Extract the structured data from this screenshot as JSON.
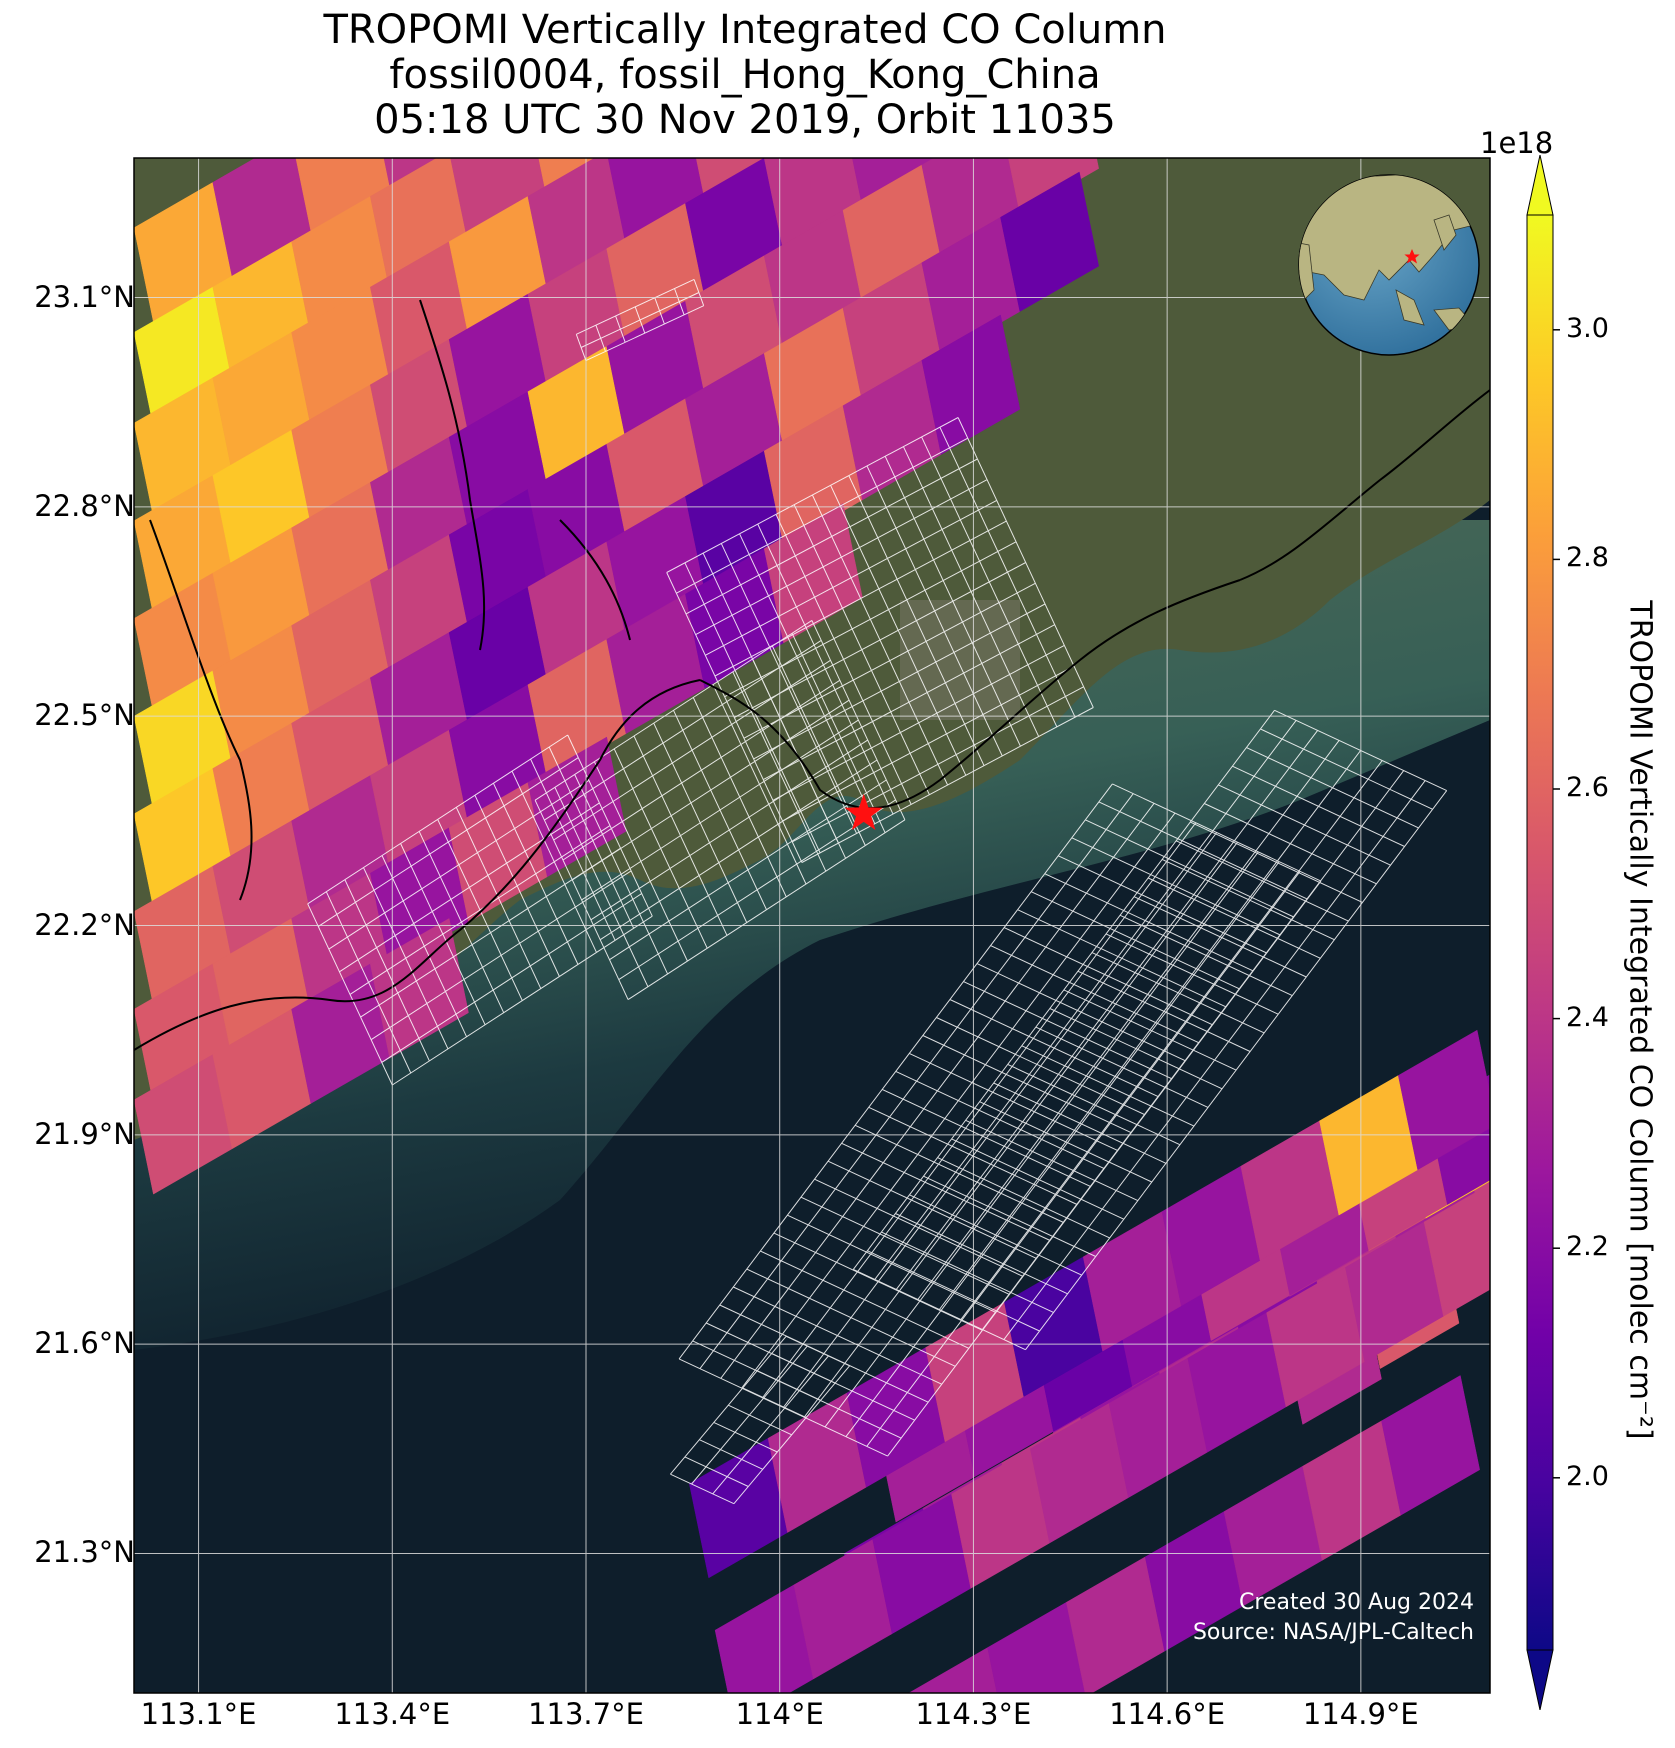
{
  "title": {
    "line1": "TROPOMI Vertically Integrated CO Column",
    "line2": "fossil0004, fossil_Hong_Kong_China",
    "line3": "05:18 UTC 30 Nov 2019, Orbit 11035"
  },
  "axes": {
    "lat_ticks": [
      "23.1°N",
      "22.8°N",
      "22.5°N",
      "22.2°N",
      "21.9°N",
      "21.6°N",
      "21.3°N"
    ],
    "lon_ticks": [
      "113.1°E",
      "113.4°E",
      "113.7°E",
      "114°E",
      "114.3°E",
      "114.6°E",
      "114.9°E"
    ]
  },
  "colorbar": {
    "label": "TROPOMI Vertically Integrated CO Column [molec cm⁻²]",
    "exponent": "1e18",
    "ticks": [
      "3.0",
      "2.8",
      "2.6",
      "2.4",
      "2.2",
      "2.0"
    ],
    "colormap": "plasma",
    "extend": "both"
  },
  "credits": {
    "created": "Created 30 Aug 2024",
    "source": "Source: NASA/JPL-Caltech"
  },
  "colors": {
    "ocean": "#0e1e2b",
    "grid": "#dddddd",
    "target_star": "#ff1010"
  },
  "chart_data": {
    "type": "heatmap",
    "variable": "Vertically integrated CO column",
    "units": "molec cm^-2 (×1e18)",
    "lon_range": [
      113.0,
      115.1
    ],
    "lat_range": [
      21.1,
      23.3
    ],
    "color_range": [
      1.85,
      3.1
    ],
    "target": {
      "lon": 114.13,
      "lat": 22.36
    },
    "scan_rows": [
      {
        "start": [
          113.0,
          23.2
        ],
        "values": [
          2.85,
          2.35,
          2.7,
          2.4,
          2.6,
          2.95,
          null,
          2.45,
          2.6
        ]
      },
      {
        "start": [
          113.0,
          23.05
        ],
        "values": [
          3.05,
          2.9,
          2.75,
          2.65,
          2.45,
          2.7,
          2.5,
          2.35,
          2.75,
          2.55
        ]
      },
      {
        "start": [
          113.0,
          22.92
        ],
        "values": [
          2.9,
          2.85,
          2.75,
          2.55,
          2.8,
          2.4,
          2.25,
          2.5,
          2.7,
          2.3,
          2.45
        ]
      },
      {
        "start": [
          113.0,
          22.78
        ],
        "values": [
          2.85,
          2.95,
          2.7,
          2.5,
          2.25,
          2.45,
          2.6,
          2.15,
          2.4,
          2.3,
          2.55
        ]
      },
      {
        "start": [
          113.0,
          22.64
        ],
        "values": [
          2.75,
          2.8,
          2.65,
          2.35,
          2.2,
          2.9,
          2.25,
          2.5,
          2.4,
          2.6,
          2.35,
          2.45
        ]
      },
      {
        "start": [
          113.0,
          22.5
        ],
        "values": [
          3.0,
          2.75,
          2.6,
          2.45,
          2.15,
          2.2,
          2.55,
          2.3,
          2.65,
          2.45,
          2.3,
          2.1
        ]
      },
      {
        "start": [
          113.0,
          22.36
        ],
        "values": [
          2.95,
          2.7,
          2.55,
          2.3,
          2.1,
          2.4,
          2.25,
          2.05,
          2.6,
          2.35,
          2.2
        ]
      },
      {
        "start": [
          113.0,
          22.22
        ],
        "values": [
          2.6,
          2.5,
          2.35,
          2.45,
          2.2,
          2.6,
          2.3,
          2.15,
          2.45
        ]
      },
      {
        "start": [
          113.0,
          22.08
        ],
        "values": [
          2.55,
          2.6,
          2.4,
          2.25,
          2.5,
          2.3
        ]
      },
      {
        "start": [
          113.0,
          21.95
        ],
        "values": [
          2.5,
          2.55,
          2.3,
          2.4
        ]
      }
    ],
    "southeast_rows": [
      {
        "start": [
          114.82,
          21.9
        ],
        "values": [
          2.2,
          2.3
        ]
      },
      {
        "start": [
          114.86,
          21.8
        ],
        "values": [
          2.5,
          2.95
        ]
      },
      {
        "start": [
          114.9,
          21.7
        ],
        "values": [
          2.55
        ]
      },
      {
        "start": [
          114.78,
          21.62
        ],
        "values": [
          2.35
        ]
      },
      {
        "start": [
          114.4,
          21.58
        ],
        "values": [
          2.25,
          2.3,
          2.2,
          2.35
        ]
      },
      {
        "start": [
          114.15,
          21.48
        ],
        "values": [
          2.3,
          2.25,
          2.1,
          2.2,
          2.4,
          2.3,
          2.45,
          2.2
        ]
      },
      {
        "start": [
          113.86,
          21.4
        ],
        "values": [
          2.05,
          2.35,
          2.2,
          2.45,
          2.0,
          2.3,
          2.25,
          2.4,
          2.9,
          2.25
        ]
      },
      {
        "start": [
          114.1,
          21.3
        ],
        "values": [
          2.15,
          2.3,
          2.4,
          2.25,
          2.35,
          2.2,
          2.4,
          2.3,
          2.45
        ]
      },
      {
        "start": [
          113.9,
          21.19
        ],
        "values": [
          2.25,
          2.3,
          2.2,
          2.4,
          2.35,
          2.3,
          2.25,
          2.4,
          2.35,
          2.45
        ]
      },
      {
        "start": [
          114.2,
          21.1
        ],
        "values": [
          2.3,
          2.25,
          2.35,
          2.2,
          2.3,
          2.4,
          2.25
        ]
      }
    ]
  }
}
